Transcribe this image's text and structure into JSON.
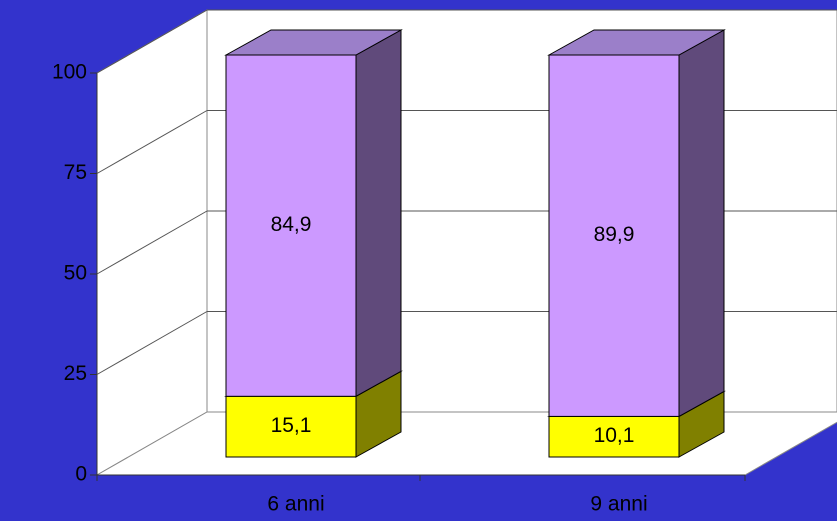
{
  "chart_data": {
    "type": "bar",
    "stacked": true,
    "categories": [
      "6 anni",
      "9 anni"
    ],
    "series": [
      {
        "color": "#ffff00",
        "side_color": "#808000",
        "values": [
          15.1,
          10.1
        ],
        "value_labels": [
          "15,1",
          "10,1"
        ]
      },
      {
        "color": "#cc99ff",
        "side_color": "#604a7b",
        "values": [
          84.9,
          89.9
        ],
        "value_labels": [
          "84,9",
          "89,9"
        ]
      }
    ],
    "ylim": [
      0,
      100
    ],
    "yticks": [
      0,
      25,
      50,
      75,
      100
    ],
    "grid": true
  }
}
